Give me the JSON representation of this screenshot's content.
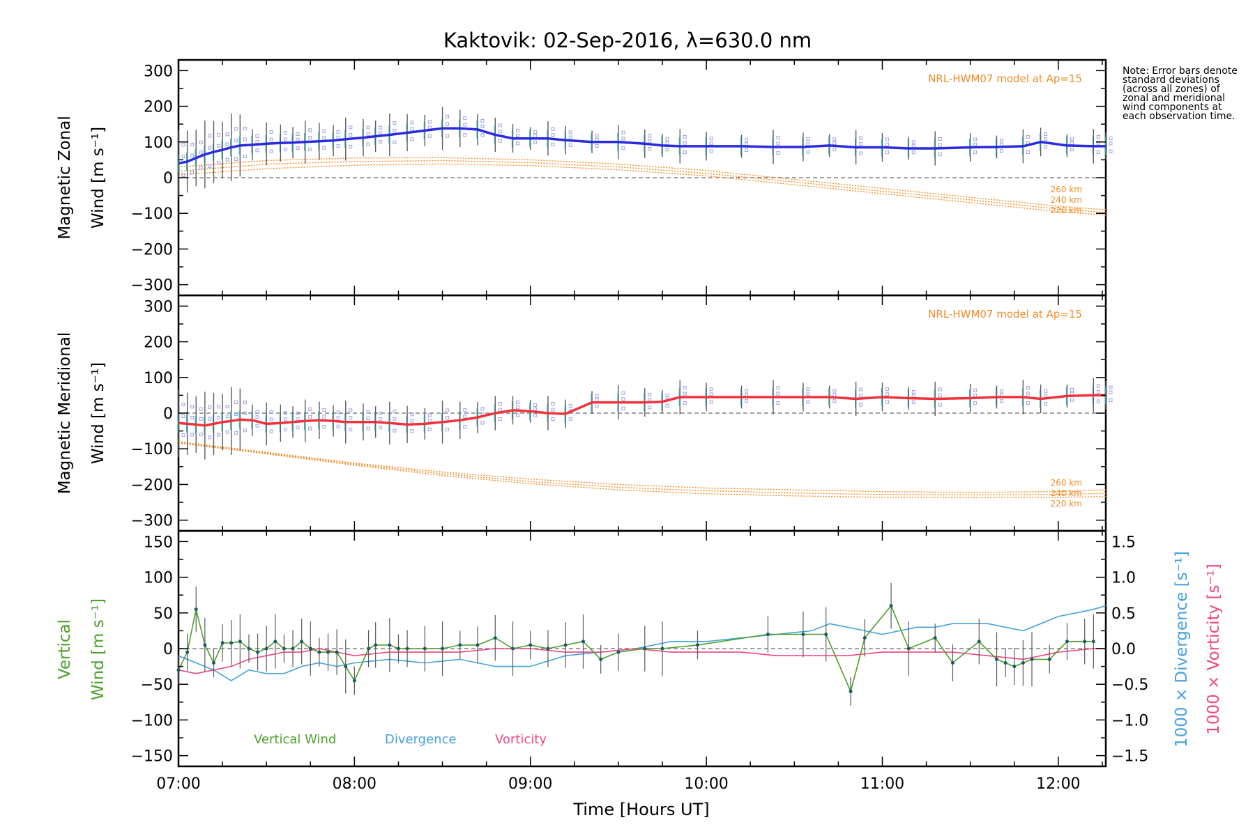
{
  "title": "Kaktovik: 02-Sep-2016, λ=630.0 nm",
  "note": "Note: Error bars denote standard deviations (across all zones) of zonal and meridional wind components at each observation time.",
  "colors": {
    "zonal": "#2a2ae0",
    "meridional": "#f0323c",
    "model": "#f08c28",
    "vertical": "#4aa02a",
    "divergence": "#46a0dc",
    "vorticity": "#f04682",
    "zone_marker": "#a0a0e0",
    "error_bar": "#5a5a5a",
    "zero_line": "#808080"
  },
  "x_axis": {
    "label": "Time [Hours UT]",
    "tick_labels": [
      "07:00",
      "08:00",
      "09:00",
      "10:00",
      "11:00",
      "12:00"
    ],
    "range": [
      7.0,
      12.27
    ]
  },
  "panels": {
    "zonal": {
      "ylabel_line1": "Magnetic Zonal",
      "ylabel_line2": "Wind [m s⁻¹]",
      "yticks": [
        "300",
        "200",
        "100",
        "0",
        "−100",
        "−200",
        "−300"
      ],
      "model_label": "NRL-HWM07 model at Ap=15",
      "alt_labels": [
        "260 km",
        "240 km",
        "220 km"
      ]
    },
    "meridional": {
      "ylabel_line1": "Magnetic Meridional",
      "ylabel_line2": "Wind [m s⁻¹]",
      "yticks": [
        "300",
        "200",
        "100",
        "0",
        "−100",
        "−200",
        "−300"
      ],
      "model_label": "NRL-HWM07 model at Ap=15",
      "alt_labels": [
        "260 km",
        "240 km",
        "220 km"
      ]
    },
    "vertical": {
      "ylabel_line1": "Vertical",
      "ylabel_line2": "Wind [m s⁻¹]",
      "yticks": [
        "150",
        "100",
        "50",
        "0",
        "−50",
        "−100",
        "−150"
      ],
      "right_yticks": [
        "1.5",
        "1.0",
        "0.5",
        "0.0",
        "−0.5",
        "−1.0",
        "−1.5"
      ],
      "right_label_div": "1000 × Divergence [s⁻¹]",
      "right_label_vort": "1000 × Vorticity [s⁻¹]",
      "legend": [
        "Vertical Wind",
        "Divergence",
        "Vorticity"
      ]
    }
  },
  "chart_data": [
    {
      "type": "line",
      "panel": "Magnetic Zonal Wind",
      "ylim": [
        -330,
        330
      ],
      "series": [
        {
          "x": [
            7.0,
            7.05,
            7.1,
            7.15,
            7.2,
            7.25,
            7.3,
            7.35,
            7.42,
            7.5,
            7.58,
            7.65,
            7.72,
            7.8,
            7.88,
            7.95,
            8.05,
            8.12,
            8.2,
            8.3,
            8.4,
            8.5,
            8.6,
            8.7,
            8.8,
            8.9,
            9.0,
            9.1,
            9.2,
            9.35,
            9.5,
            9.65,
            9.75,
            9.85,
            10.0,
            10.2,
            10.38,
            10.55,
            10.7,
            10.85,
            11.0,
            11.15,
            11.3,
            11.5,
            11.65,
            11.8,
            11.9,
            12.05,
            12.2,
            12.27
          ],
          "values": [
            40,
            45,
            55,
            65,
            72,
            78,
            85,
            90,
            92,
            95,
            97,
            98,
            100,
            102,
            104,
            108,
            112,
            116,
            120,
            126,
            132,
            138,
            138,
            135,
            120,
            110,
            110,
            110,
            105,
            100,
            100,
            95,
            90,
            88,
            88,
            88,
            86,
            86,
            90,
            85,
            85,
            82,
            82,
            85,
            86,
            88,
            100,
            90,
            88,
            88
          ]
        }
      ],
      "model": [
        {
          "x": [
            7.0,
            7.5,
            8.0,
            8.5,
            9.0,
            9.5,
            10.0,
            10.5,
            11.0,
            11.5,
            12.0,
            12.27
          ],
          "values": [
            30,
            48,
            55,
            56,
            50,
            38,
            20,
            -5,
            -30,
            -55,
            -80,
            -90
          ]
        },
        {
          "x": [
            7.0,
            7.5,
            8.0,
            8.5,
            9.0,
            9.5,
            10.0,
            10.5,
            11.0,
            11.5,
            12.0,
            12.27
          ],
          "values": [
            18,
            38,
            45,
            48,
            42,
            30,
            12,
            -12,
            -38,
            -62,
            -88,
            -98
          ]
        },
        {
          "x": [
            7.0,
            7.5,
            8.0,
            8.5,
            9.0,
            9.5,
            10.0,
            10.5,
            11.0,
            11.5,
            12.0,
            12.27
          ],
          "values": [
            8,
            25,
            35,
            38,
            34,
            22,
            5,
            -20,
            -45,
            -70,
            -95,
            -105
          ]
        }
      ]
    },
    {
      "type": "line",
      "panel": "Magnetic Meridional Wind",
      "ylim": [
        -330,
        330
      ],
      "series": [
        {
          "x": [
            7.0,
            7.05,
            7.1,
            7.15,
            7.2,
            7.25,
            7.3,
            7.35,
            7.42,
            7.5,
            7.58,
            7.65,
            7.72,
            7.8,
            7.88,
            7.95,
            8.05,
            8.12,
            8.2,
            8.3,
            8.4,
            8.5,
            8.6,
            8.7,
            8.8,
            8.9,
            9.0,
            9.1,
            9.2,
            9.35,
            9.5,
            9.65,
            9.75,
            9.85,
            10.0,
            10.2,
            10.38,
            10.55,
            10.7,
            10.85,
            11.0,
            11.15,
            11.3,
            11.5,
            11.65,
            11.8,
            11.9,
            12.05,
            12.2,
            12.27
          ],
          "values": [
            -28,
            -30,
            -32,
            -35,
            -30,
            -25,
            -22,
            -18,
            -20,
            -30,
            -28,
            -25,
            -22,
            -20,
            -22,
            -25,
            -25,
            -25,
            -28,
            -32,
            -30,
            -25,
            -20,
            -12,
            0,
            8,
            5,
            0,
            -2,
            30,
            30,
            30,
            32,
            45,
            45,
            45,
            45,
            45,
            45,
            40,
            45,
            42,
            40,
            42,
            45,
            45,
            40,
            48,
            50,
            50
          ]
        }
      ],
      "model": [
        {
          "x": [
            7.0,
            7.5,
            8.0,
            8.5,
            9.0,
            9.5,
            10.0,
            10.5,
            11.0,
            11.5,
            12.0,
            12.27
          ],
          "values": [
            -80,
            -110,
            -140,
            -165,
            -185,
            -200,
            -210,
            -215,
            -220,
            -222,
            -220,
            -215
          ]
        },
        {
          "x": [
            7.0,
            7.5,
            8.0,
            8.5,
            9.0,
            9.5,
            10.0,
            10.5,
            11.0,
            11.5,
            12.0,
            12.27
          ],
          "values": [
            -82,
            -112,
            -143,
            -170,
            -192,
            -208,
            -218,
            -224,
            -228,
            -229,
            -228,
            -225
          ]
        },
        {
          "x": [
            7.0,
            7.5,
            8.0,
            8.5,
            9.0,
            9.5,
            10.0,
            10.5,
            11.0,
            11.5,
            12.0,
            12.27
          ],
          "values": [
            -84,
            -114,
            -146,
            -175,
            -198,
            -215,
            -226,
            -232,
            -236,
            -237,
            -236,
            -234
          ]
        }
      ]
    },
    {
      "type": "line",
      "panel": "Vertical Wind / Divergence / Vorticity",
      "ylim": [
        -165,
        165
      ],
      "y2lim": [
        -1.65,
        1.65
      ],
      "series": [
        {
          "name": "Vertical Wind",
          "x": [
            7.0,
            7.05,
            7.1,
            7.15,
            7.2,
            7.25,
            7.3,
            7.35,
            7.4,
            7.45,
            7.5,
            7.55,
            7.6,
            7.65,
            7.7,
            7.75,
            7.8,
            7.85,
            7.9,
            7.95,
            8.0,
            8.08,
            8.12,
            8.2,
            8.25,
            8.3,
            8.4,
            8.5,
            8.6,
            8.7,
            8.8,
            8.9,
            9.0,
            9.1,
            9.2,
            9.3,
            9.4,
            9.5,
            9.65,
            9.75,
            9.95,
            10.35,
            10.55,
            10.68,
            10.82,
            10.9,
            11.05,
            11.15,
            11.3,
            11.4,
            11.55,
            11.65,
            11.7,
            11.75,
            11.8,
            11.85,
            11.95,
            12.05,
            12.15,
            12.2
          ],
          "values": [
            -30,
            -5,
            55,
            5,
            -20,
            8,
            8,
            10,
            0,
            -5,
            0,
            10,
            0,
            0,
            10,
            0,
            -5,
            -5,
            -5,
            -25,
            -45,
            0,
            5,
            5,
            0,
            0,
            0,
            0,
            5,
            5,
            15,
            0,
            5,
            0,
            5,
            10,
            -15,
            -5,
            0,
            0,
            5,
            20,
            20,
            20,
            -60,
            15,
            60,
            0,
            15,
            -20,
            10,
            -15,
            -20,
            -25,
            -20,
            -15,
            -15,
            10,
            10,
            10
          ]
        },
        {
          "name": "Divergence",
          "x": [
            7.0,
            7.1,
            7.2,
            7.3,
            7.4,
            7.5,
            7.6,
            7.7,
            7.8,
            7.9,
            8.0,
            8.2,
            8.4,
            8.6,
            8.8,
            9.0,
            9.2,
            9.4,
            9.6,
            9.8,
            10.0,
            10.2,
            10.4,
            10.6,
            10.7,
            10.8,
            10.9,
            11.0,
            11.1,
            11.2,
            11.3,
            11.4,
            11.5,
            11.6,
            11.7,
            11.8,
            11.9,
            12.0,
            12.1,
            12.2,
            12.27
          ],
          "values": [
            -0.1,
            -0.2,
            -0.3,
            -0.45,
            -0.3,
            -0.35,
            -0.35,
            -0.25,
            -0.2,
            -0.25,
            -0.2,
            -0.15,
            -0.2,
            -0.15,
            -0.25,
            -0.25,
            -0.1,
            -0.05,
            0.0,
            0.1,
            0.1,
            0.15,
            0.2,
            0.25,
            0.35,
            0.3,
            0.25,
            0.2,
            0.25,
            0.3,
            0.3,
            0.35,
            0.35,
            0.35,
            0.3,
            0.25,
            0.35,
            0.45,
            0.5,
            0.55,
            0.6
          ]
        },
        {
          "name": "Vorticity",
          "x": [
            7.0,
            7.1,
            7.2,
            7.3,
            7.4,
            7.5,
            7.6,
            7.7,
            7.8,
            7.9,
            8.0,
            8.2,
            8.4,
            8.6,
            8.8,
            9.0,
            9.2,
            9.4,
            9.6,
            9.8,
            10.0,
            10.2,
            10.4,
            10.6,
            10.8,
            11.0,
            11.2,
            11.4,
            11.6,
            11.8,
            12.0,
            12.2,
            12.27
          ],
          "values": [
            -0.3,
            -0.35,
            -0.3,
            -0.25,
            -0.15,
            -0.1,
            -0.05,
            -0.05,
            0.0,
            -0.05,
            -0.1,
            -0.05,
            -0.05,
            -0.05,
            0.0,
            0.0,
            -0.05,
            -0.05,
            0.0,
            -0.05,
            -0.05,
            -0.05,
            -0.1,
            -0.1,
            -0.1,
            -0.05,
            -0.05,
            -0.05,
            -0.1,
            -0.15,
            -0.05,
            0.0,
            0.0
          ]
        }
      ]
    }
  ]
}
